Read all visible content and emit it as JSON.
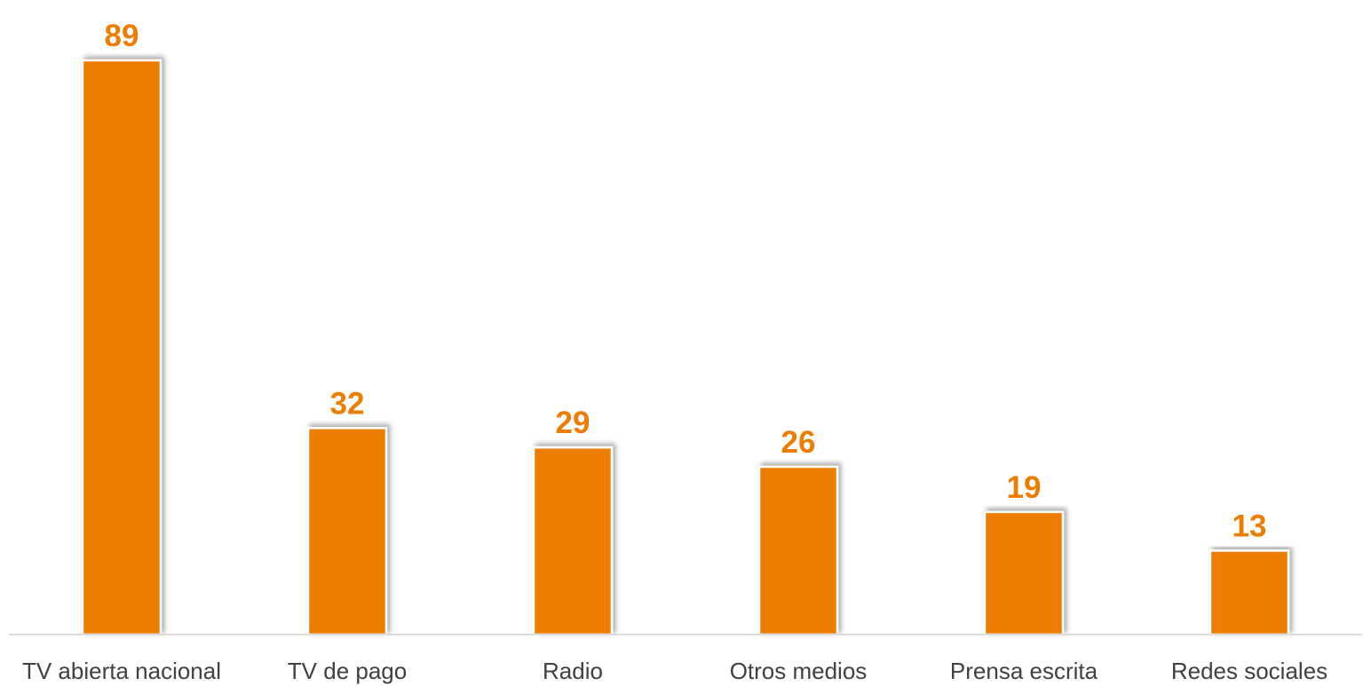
{
  "chart_data": {
    "type": "bar",
    "categories": [
      "TV abierta nacional",
      "TV de pago",
      "Radio",
      "Otros medios",
      "Prensa escrita",
      "Redes sociales"
    ],
    "values": [
      89,
      32,
      29,
      26,
      19,
      13
    ],
    "title": "",
    "xlabel": "",
    "ylabel": "",
    "ylim": [
      0,
      89
    ],
    "grid": false,
    "legend": "none",
    "data_labels": true,
    "colors": {
      "bar": "#ED7D00",
      "value_label": "#ED7D00",
      "category_label": "#404040",
      "axis": "#D0D0D0"
    }
  }
}
